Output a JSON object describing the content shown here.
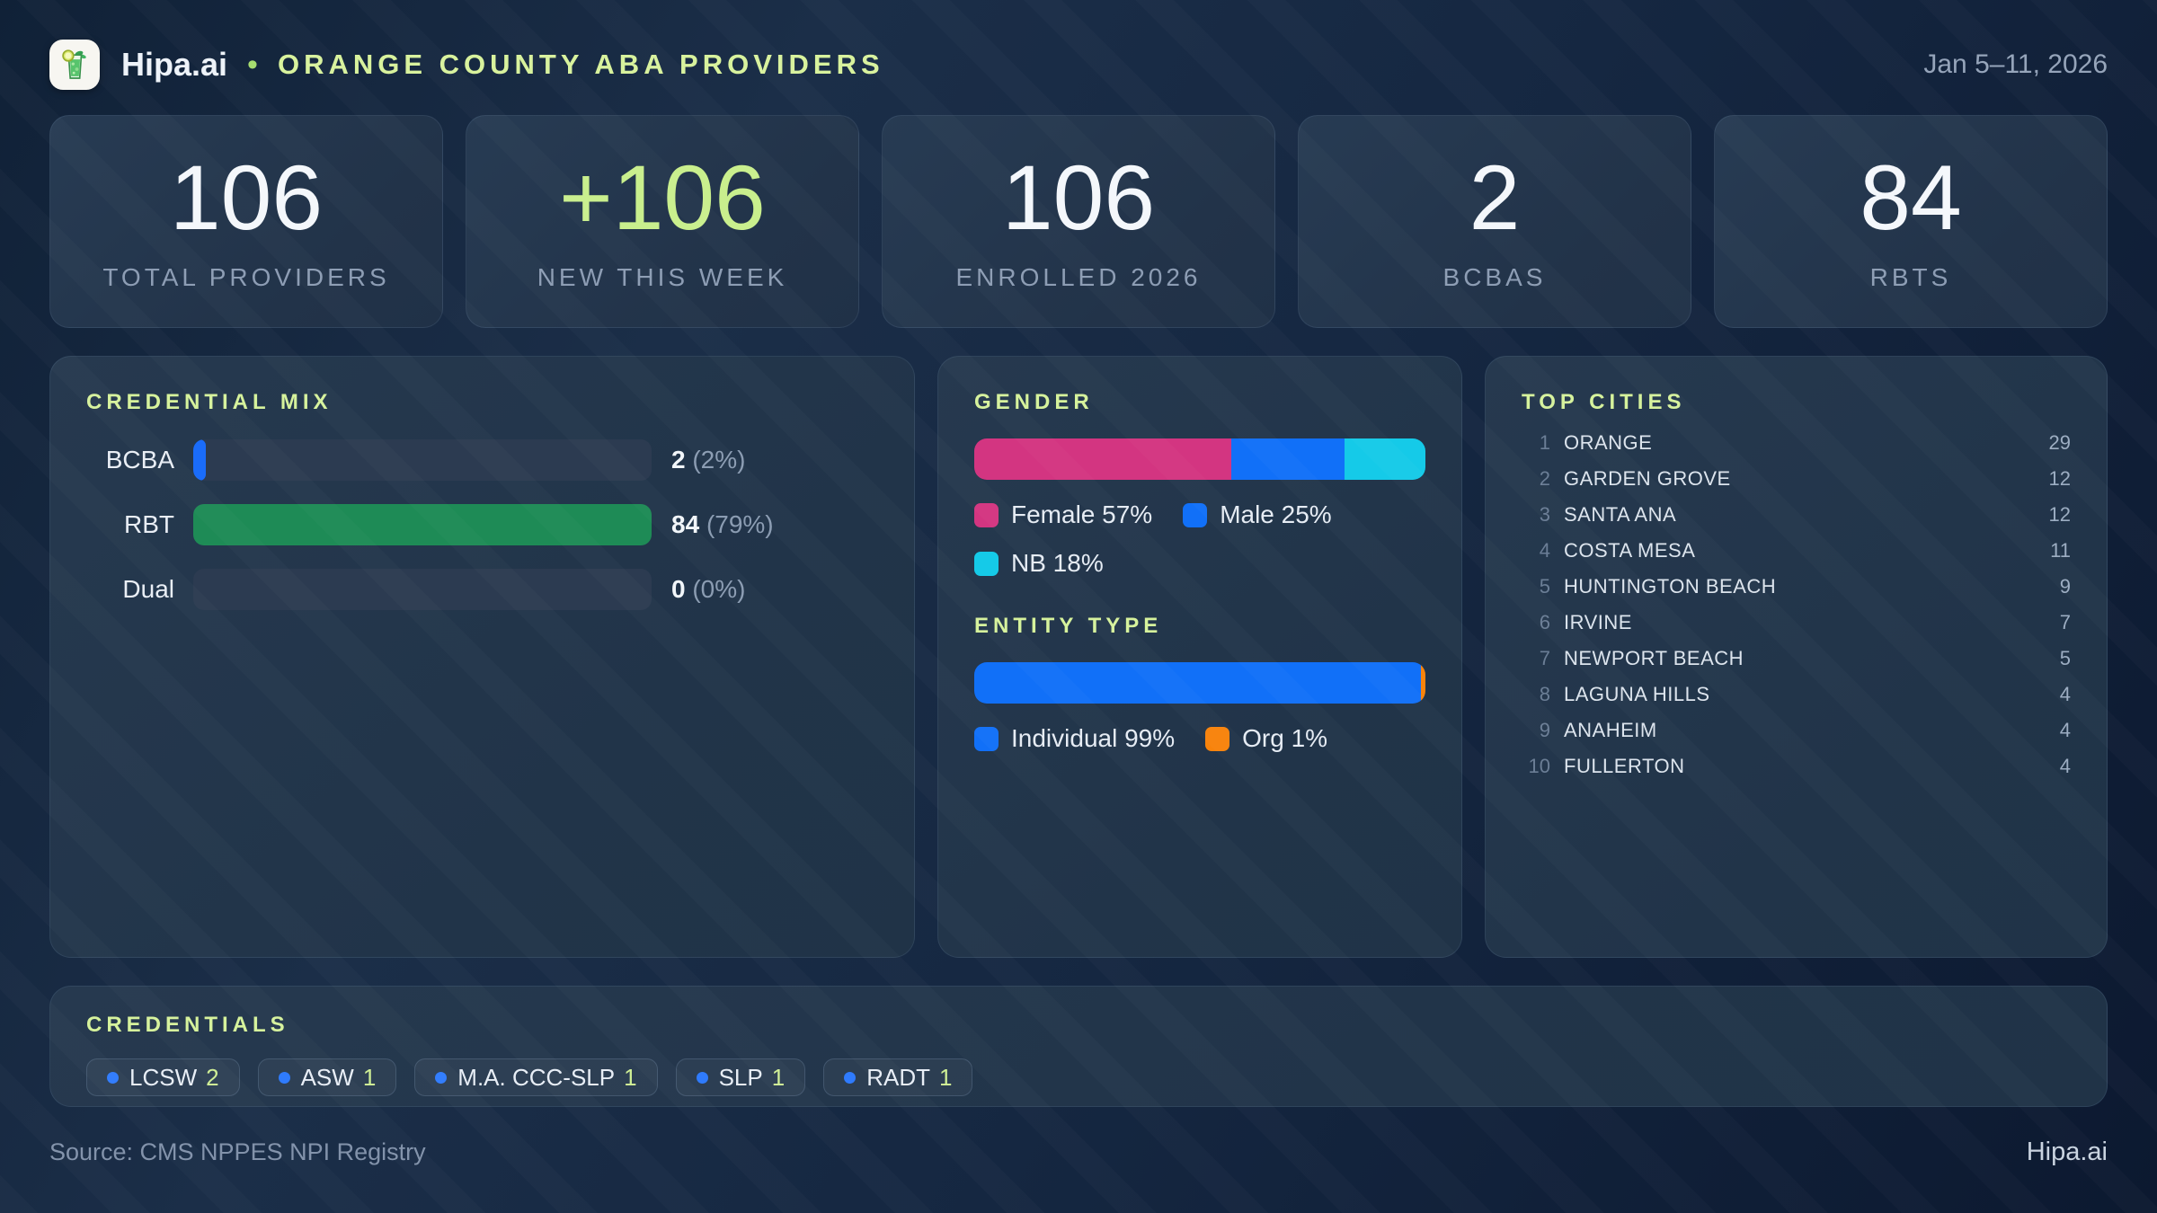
{
  "header": {
    "brand": "Hipa.ai",
    "separator": "•",
    "title": "ORANGE COUNTY ABA PROVIDERS",
    "date_range": "Jan 5–11, 2026",
    "logo_icon": "mojito-glass-icon"
  },
  "stats": [
    {
      "value": "106",
      "label": "TOTAL PROVIDERS",
      "accent": false
    },
    {
      "value": "+106",
      "label": "NEW THIS WEEK",
      "accent": true
    },
    {
      "value": "106",
      "label": "ENROLLED 2026",
      "accent": false
    },
    {
      "value": "2",
      "label": "BCBAS",
      "accent": false
    },
    {
      "value": "84",
      "label": "RBTS",
      "accent": false
    }
  ],
  "credential_mix": {
    "title": "CREDENTIAL MIX",
    "rows": [
      {
        "label": "BCBA",
        "value": "2",
        "pct_label": "(2%)",
        "bar_pct": 2.4,
        "color": "#1a6cfa"
      },
      {
        "label": "RBT",
        "value": "84",
        "pct_label": "(79%)",
        "bar_pct": 100,
        "color": "#1e8b56"
      },
      {
        "label": "Dual",
        "value": "0",
        "pct_label": "(0%)",
        "bar_pct": 0,
        "color": "#1a6cfa"
      }
    ]
  },
  "gender": {
    "title": "GENDER",
    "segments": [
      {
        "name": "female",
        "pct": 57,
        "color": "#d33581"
      },
      {
        "name": "male",
        "pct": 25,
        "color": "#1170f8"
      },
      {
        "name": "nb",
        "pct": 18,
        "color": "#15cae8"
      }
    ],
    "legend_rows": [
      [
        {
          "name": "female",
          "label": "Female 57%",
          "color": "#d33581"
        },
        {
          "name": "male",
          "label": "Male 25%",
          "color": "#1170f8"
        }
      ],
      [
        {
          "name": "nb",
          "label": "NB 18%",
          "color": "#15cae8"
        }
      ]
    ]
  },
  "entity_type": {
    "title": "ENTITY TYPE",
    "segments": [
      {
        "name": "individual",
        "pct": 99,
        "color": "#1170f8"
      },
      {
        "name": "org",
        "pct": 1,
        "color": "#f8830b"
      }
    ],
    "legend_rows": [
      [
        {
          "name": "individual",
          "label": "Individual 99%",
          "color": "#1170f8"
        },
        {
          "name": "org",
          "label": "Org 1%",
          "color": "#f8830b"
        }
      ]
    ]
  },
  "top_cities": {
    "title": "TOP CITIES",
    "rows": [
      {
        "rank": "1",
        "name": "ORANGE",
        "count": "29"
      },
      {
        "rank": "2",
        "name": "GARDEN GROVE",
        "count": "12"
      },
      {
        "rank": "3",
        "name": "SANTA ANA",
        "count": "12"
      },
      {
        "rank": "4",
        "name": "COSTA MESA",
        "count": "11"
      },
      {
        "rank": "5",
        "name": "HUNTINGTON BEACH",
        "count": "9"
      },
      {
        "rank": "6",
        "name": "IRVINE",
        "count": "7"
      },
      {
        "rank": "7",
        "name": "NEWPORT BEACH",
        "count": "5"
      },
      {
        "rank": "8",
        "name": "LAGUNA HILLS",
        "count": "4"
      },
      {
        "rank": "9",
        "name": "ANAHEIM",
        "count": "4"
      },
      {
        "rank": "10",
        "name": "FULLERTON",
        "count": "4"
      }
    ]
  },
  "credentials": {
    "title": "CREDENTIALS",
    "pills": [
      {
        "label": "LCSW",
        "count": "2"
      },
      {
        "label": "ASW",
        "count": "1"
      },
      {
        "label": "M.A. CCC-SLP",
        "count": "1"
      },
      {
        "label": "SLP",
        "count": "1"
      },
      {
        "label": "RADT",
        "count": "1"
      }
    ]
  },
  "footer": {
    "source": "Source: CMS NPPES NPI Registry",
    "brand": "Hipa.ai"
  },
  "colors": {
    "accent_green_text": "#d6f29c",
    "plus_green": "#c9ef8d",
    "bar_green": "#1e8b56",
    "bar_blue": "#1a6cfa",
    "pink": "#d33581",
    "cyan": "#15cae8",
    "orange": "#f8830b",
    "bar_track": "#2c3b51",
    "muted_text": "#8d9db4"
  },
  "chart_data": [
    {
      "type": "bar",
      "title": "CREDENTIAL MIX",
      "categories": [
        "BCBA",
        "RBT",
        "Dual"
      ],
      "values": [
        2,
        84,
        0
      ],
      "percent_labels": [
        "2%",
        "79%",
        "0%"
      ]
    },
    {
      "type": "bar",
      "title": "GENDER",
      "categories": [
        "Female",
        "Male",
        "NB"
      ],
      "values": [
        57,
        25,
        18
      ],
      "unit": "%"
    },
    {
      "type": "bar",
      "title": "ENTITY TYPE",
      "categories": [
        "Individual",
        "Org"
      ],
      "values": [
        99,
        1
      ],
      "unit": "%"
    }
  ]
}
